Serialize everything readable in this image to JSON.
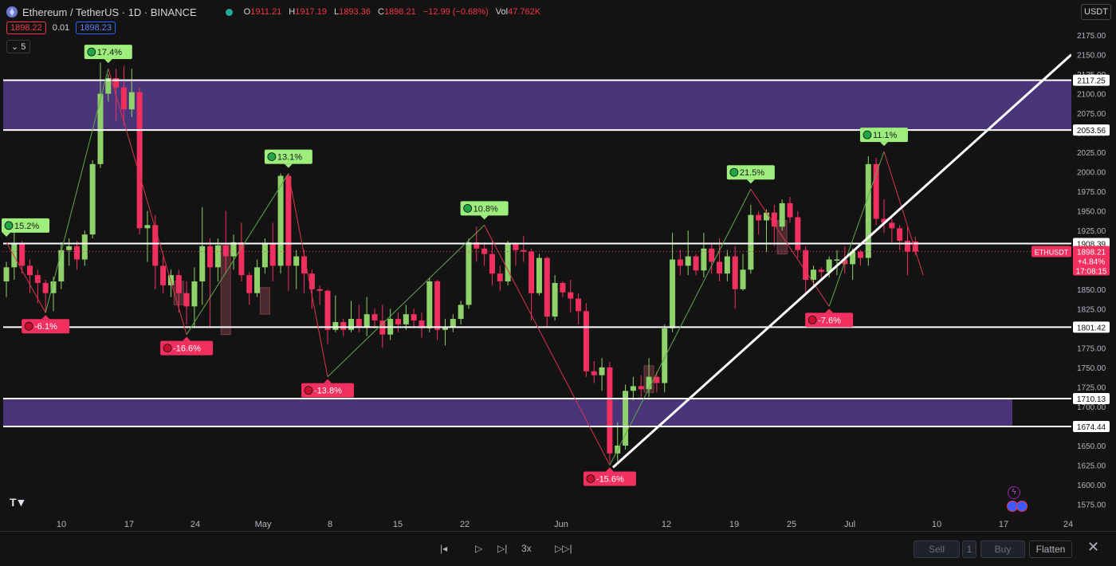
{
  "header": {
    "title": "Ethereum / TetherUS · 1D · BINANCE",
    "ohlc": {
      "o_label": "O",
      "o": "1911.21",
      "h_label": "H",
      "h": "1917.19",
      "l_label": "L",
      "l": "1893.36",
      "c_label": "C",
      "c": "1898.21",
      "change": "−12.99 (−0.68%)",
      "vol_label": "Vol",
      "vol": "47.762K"
    },
    "sell_price": "1898.22",
    "spread": "0.01",
    "buy_price": "1898.23",
    "indicator_value": "5"
  },
  "currency_button": "USDT",
  "y_axis": {
    "ticks": [
      "2175.00",
      "2150.00",
      "2125.00",
      "2100.00",
      "2075.00",
      "2050.00",
      "2025.00",
      "2000.00",
      "1975.00",
      "1950.00",
      "1925.00",
      "1900.00",
      "1875.00",
      "1850.00",
      "1825.00",
      "1800.00",
      "1775.00",
      "1750.00",
      "1725.00",
      "1700.00",
      "1675.00",
      "1650.00",
      "1625.00",
      "1600.00",
      "1575.00"
    ]
  },
  "x_axis": {
    "labels": [
      "10",
      "17",
      "24",
      "May",
      "8",
      "15",
      "22",
      "Jun",
      "12",
      "19",
      "25",
      "Jul",
      "10",
      "17",
      "24"
    ]
  },
  "levels": [
    "2117.25",
    "2053.56",
    "1908.39",
    "1801.42",
    "1710.13",
    "1674.44"
  ],
  "price_tag": {
    "symbol": "ETHUSDT",
    "price": "1898.21",
    "change": "+4.84%",
    "countdown": "17:08:15"
  },
  "pivots": [
    "15.2%",
    "17.4%",
    "13.1%",
    "10.8%",
    "21.5%",
    "11.1%",
    "-6.1%",
    "-16.6%",
    "-13.8%",
    "-15.6%",
    "-7.6%"
  ],
  "colors": {
    "up": "#8fd16a",
    "down": "#f2305f",
    "zone": "#4b3579",
    "line": "#ffffff",
    "bg": "#131313"
  },
  "bottom_bar": {
    "speed": "3x",
    "sell": "Sell",
    "qty": "1",
    "buy": "Buy",
    "flatten": "Flatten"
  },
  "chart_data": {
    "type": "candlestick",
    "ylim": [
      1560,
      2190
    ],
    "zones": [
      [
        2053.56,
        2117.25
      ],
      [
        1674.44,
        1710.13
      ]
    ],
    "trendline": [
      [
        1622,
        0
      ],
      [
        2150,
        1
      ]
    ],
    "candles": [
      [
        1860,
        1878,
        1840,
        1885
      ],
      [
        1878,
        1908,
        1862,
        1925
      ],
      [
        1908,
        1880,
        1870,
        1912
      ],
      [
        1880,
        1868,
        1845,
        1888
      ],
      [
        1868,
        1858,
        1832,
        1875
      ],
      [
        1858,
        1845,
        1820,
        1862
      ],
      [
        1845,
        1860,
        1822,
        1866
      ],
      [
        1860,
        1900,
        1850,
        1910
      ],
      [
        1900,
        1905,
        1880,
        1915
      ],
      [
        1905,
        1888,
        1875,
        1912
      ],
      [
        1888,
        1920,
        1880,
        1925
      ],
      [
        1920,
        2010,
        1915,
        2015
      ],
      [
        2010,
        2100,
        2005,
        2140
      ],
      [
        2100,
        2120,
        2090,
        2125
      ],
      [
        2120,
        2108,
        2065,
        2132
      ],
      [
        2108,
        2080,
        2060,
        2135
      ],
      [
        2080,
        2102,
        2070,
        2132
      ],
      [
        2102,
        1928,
        1920,
        2108
      ],
      [
        1928,
        1932,
        1885,
        1950
      ],
      [
        1932,
        1880,
        1850,
        1945
      ],
      [
        1880,
        1855,
        1845,
        1892
      ],
      [
        1855,
        1868,
        1840,
        1875
      ],
      [
        1868,
        1845,
        1820,
        1875
      ],
      [
        1845,
        1828,
        1805,
        1860
      ],
      [
        1828,
        1860,
        1800,
        1878
      ],
      [
        1860,
        1905,
        1830,
        1955
      ],
      [
        1905,
        1878,
        1800,
        1915
      ],
      [
        1878,
        1906,
        1860,
        1915
      ],
      [
        1906,
        1892,
        1870,
        1950
      ],
      [
        1892,
        1910,
        1875,
        1920
      ],
      [
        1910,
        1868,
        1860,
        1935
      ],
      [
        1868,
        1845,
        1830,
        1872
      ],
      [
        1845,
        1878,
        1840,
        1888
      ],
      [
        1878,
        1908,
        1870,
        1915
      ],
      [
        1908,
        1880,
        1860,
        1935
      ],
      [
        1880,
        1995,
        1870,
        1998
      ],
      [
        1995,
        1880,
        1848,
        1998
      ],
      [
        1880,
        1892,
        1850,
        1900
      ],
      [
        1892,
        1870,
        1845,
        1900
      ],
      [
        1870,
        1850,
        1825,
        1875
      ],
      [
        1850,
        1848,
        1830,
        1855
      ],
      [
        1848,
        1798,
        1780,
        1850
      ],
      [
        1798,
        1808,
        1795,
        1842
      ],
      [
        1808,
        1798,
        1790,
        1812
      ],
      [
        1798,
        1812,
        1795,
        1835
      ],
      [
        1812,
        1802,
        1795,
        1830
      ],
      [
        1802,
        1818,
        1790,
        1840
      ],
      [
        1818,
        1810,
        1800,
        1825
      ],
      [
        1810,
        1792,
        1775,
        1830
      ],
      [
        1792,
        1812,
        1785,
        1825
      ],
      [
        1812,
        1805,
        1795,
        1820
      ],
      [
        1805,
        1818,
        1798,
        1830
      ],
      [
        1818,
        1810,
        1800,
        1825
      ],
      [
        1810,
        1800,
        1788,
        1820
      ],
      [
        1800,
        1860,
        1795,
        1865
      ],
      [
        1860,
        1798,
        1785,
        1862
      ],
      [
        1798,
        1802,
        1778,
        1812
      ],
      [
        1802,
        1812,
        1795,
        1818
      ],
      [
        1812,
        1830,
        1805,
        1835
      ],
      [
        1830,
        1910,
        1825,
        1915
      ],
      [
        1910,
        1902,
        1885,
        1930
      ],
      [
        1902,
        1895,
        1880,
        1910
      ],
      [
        1895,
        1870,
        1855,
        1912
      ],
      [
        1870,
        1860,
        1848,
        1880
      ],
      [
        1860,
        1908,
        1855,
        1912
      ],
      [
        1908,
        1900,
        1880,
        1910
      ],
      [
        1900,
        1898,
        1885,
        1918
      ],
      [
        1898,
        1845,
        1810,
        1902
      ],
      [
        1845,
        1890,
        1842,
        1895
      ],
      [
        1890,
        1815,
        1802,
        1892
      ],
      [
        1815,
        1858,
        1810,
        1868
      ],
      [
        1858,
        1846,
        1840,
        1860
      ],
      [
        1846,
        1838,
        1820,
        1862
      ],
      [
        1838,
        1822,
        1805,
        1845
      ],
      [
        1822,
        1745,
        1738,
        1832
      ],
      [
        1745,
        1740,
        1730,
        1758
      ],
      [
        1740,
        1750,
        1720,
        1762
      ],
      [
        1750,
        1640,
        1628,
        1757
      ],
      [
        1640,
        1650,
        1630,
        1680
      ],
      [
        1650,
        1720,
        1645,
        1728
      ],
      [
        1720,
        1726,
        1708,
        1738
      ],
      [
        1726,
        1722,
        1710,
        1740
      ],
      [
        1722,
        1738,
        1712,
        1762
      ],
      [
        1738,
        1730,
        1718,
        1745
      ],
      [
        1730,
        1800,
        1718,
        1805
      ],
      [
        1800,
        1888,
        1795,
        1922
      ],
      [
        1888,
        1880,
        1868,
        1900
      ],
      [
        1880,
        1892,
        1868,
        1925
      ],
      [
        1892,
        1874,
        1868,
        1895
      ],
      [
        1874,
        1902,
        1865,
        1922
      ],
      [
        1902,
        1885,
        1870,
        1910
      ],
      [
        1885,
        1870,
        1860,
        1915
      ],
      [
        1870,
        1892,
        1860,
        1900
      ],
      [
        1892,
        1850,
        1825,
        1905
      ],
      [
        1850,
        1875,
        1848,
        1895
      ],
      [
        1875,
        1945,
        1870,
        1958
      ],
      [
        1945,
        1938,
        1920,
        1950
      ],
      [
        1938,
        1948,
        1898,
        1952
      ],
      [
        1948,
        1930,
        1905,
        1958
      ],
      [
        1930,
        1960,
        1925,
        1965
      ],
      [
        1960,
        1942,
        1935,
        1968
      ],
      [
        1942,
        1900,
        1890,
        1950
      ],
      [
        1900,
        1862,
        1845,
        1905
      ],
      [
        1862,
        1875,
        1855,
        1880
      ],
      [
        1875,
        1872,
        1860,
        1878
      ],
      [
        1872,
        1888,
        1865,
        1892
      ],
      [
        1888,
        1888,
        1868,
        1900
      ],
      [
        1888,
        1882,
        1870,
        1905
      ],
      [
        1882,
        1898,
        1862,
        1902
      ],
      [
        1898,
        1890,
        1880,
        1900
      ],
      [
        1890,
        2010,
        1880,
        2020
      ],
      [
        2010,
        1940,
        1932,
        2018
      ],
      [
        1940,
        1935,
        1922,
        1965
      ],
      [
        1935,
        1928,
        1910,
        1940
      ],
      [
        1928,
        1912,
        1900,
        1932
      ],
      [
        1912,
        1898,
        1868,
        1930
      ],
      [
        1911,
        1898,
        1893,
        1917
      ]
    ],
    "ghost_candles": [
      [
        1860,
        1830,
        1812,
        1864
      ],
      [
        1908,
        1792,
        1788,
        1912
      ],
      [
        1852,
        1818,
        1798,
        1862
      ],
      [
        1752,
        1718,
        1712,
        1758
      ],
      [
        1938,
        1895,
        1893,
        1940
      ]
    ],
    "zigzag": [
      [
        0,
        1910
      ],
      [
        5,
        1820
      ],
      [
        13,
        2132
      ],
      [
        23,
        1792
      ],
      [
        36,
        1998
      ],
      [
        41,
        1738
      ],
      [
        61,
        1932
      ],
      [
        77,
        1625
      ],
      [
        95,
        1978
      ],
      [
        105,
        1828
      ],
      [
        112,
        2026
      ],
      [
        117,
        1868
      ]
    ]
  }
}
